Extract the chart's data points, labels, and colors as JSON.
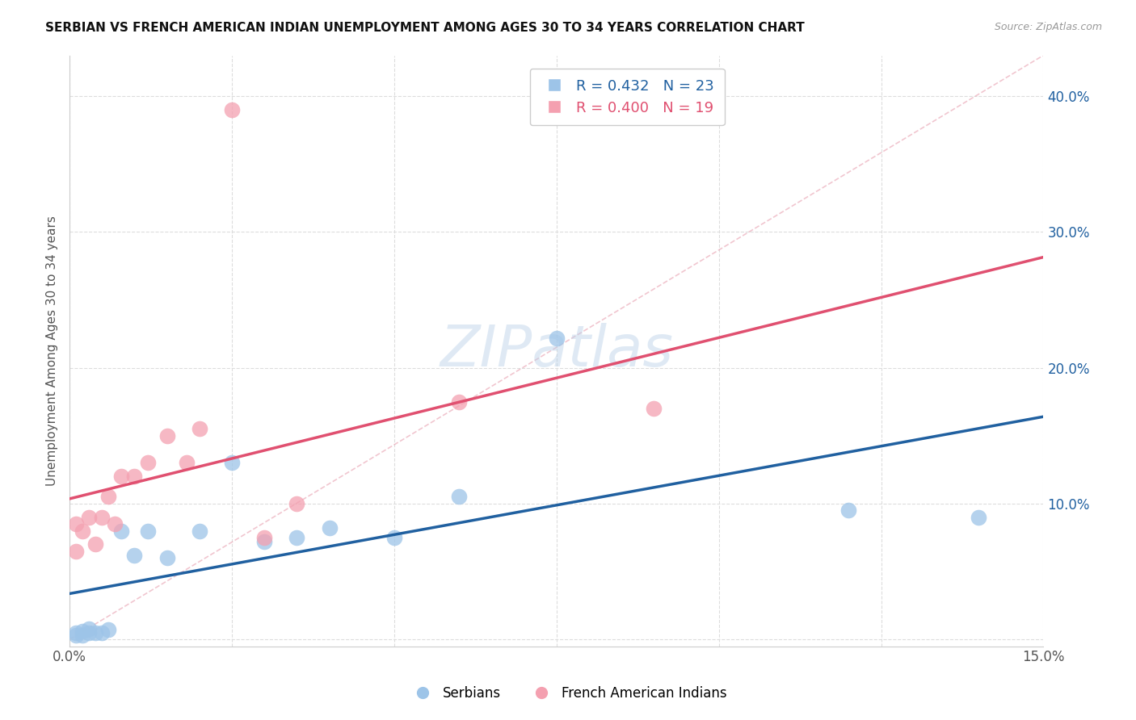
{
  "title": "SERBIAN VS FRENCH AMERICAN INDIAN UNEMPLOYMENT AMONG AGES 30 TO 34 YEARS CORRELATION CHART",
  "source": "Source: ZipAtlas.com",
  "ylabel": "Unemployment Among Ages 30 to 34 years",
  "y_ticks": [
    0.0,
    0.1,
    0.2,
    0.3,
    0.4
  ],
  "xlim": [
    0.0,
    0.15
  ],
  "ylim": [
    -0.005,
    0.43
  ],
  "serbians": {
    "x": [
      0.001,
      0.001,
      0.002,
      0.002,
      0.003,
      0.003,
      0.004,
      0.005,
      0.006,
      0.008,
      0.01,
      0.012,
      0.015,
      0.02,
      0.025,
      0.03,
      0.035,
      0.04,
      0.05,
      0.06,
      0.075,
      0.12,
      0.14
    ],
    "y": [
      0.003,
      0.005,
      0.003,
      0.006,
      0.005,
      0.008,
      0.005,
      0.005,
      0.007,
      0.08,
      0.062,
      0.08,
      0.06,
      0.08,
      0.13,
      0.072,
      0.075,
      0.082,
      0.075,
      0.105,
      0.222,
      0.095,
      0.09
    ],
    "R": 0.432,
    "N": 23,
    "color": "#9dc4e8",
    "line_color": "#2060a0"
  },
  "french_american_indians": {
    "x": [
      0.001,
      0.001,
      0.002,
      0.003,
      0.004,
      0.005,
      0.006,
      0.007,
      0.008,
      0.01,
      0.012,
      0.015,
      0.018,
      0.02,
      0.025,
      0.03,
      0.035,
      0.06,
      0.09
    ],
    "y": [
      0.065,
      0.085,
      0.08,
      0.09,
      0.07,
      0.09,
      0.105,
      0.085,
      0.12,
      0.12,
      0.13,
      0.15,
      0.13,
      0.155,
      0.39,
      0.075,
      0.1,
      0.175,
      0.17
    ],
    "R": 0.4,
    "N": 19,
    "color": "#f4a0b0",
    "line_color": "#e05070"
  },
  "watermark": "ZIPatlas",
  "background_color": "#ffffff",
  "grid_color": "#dddddd"
}
